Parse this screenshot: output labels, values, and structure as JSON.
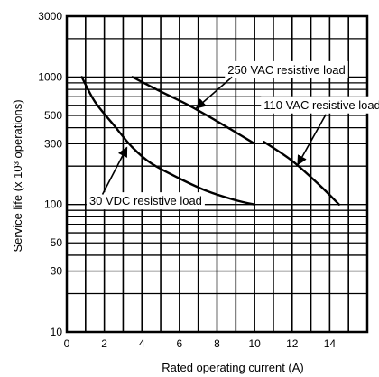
{
  "chart_data": {
    "type": "line",
    "xlabel": "Rated operating current (A)",
    "ylabel": "Service life (x 10³ operations)",
    "xlim": [
      0,
      16
    ],
    "ylim": [
      10,
      3000
    ],
    "y_scale": "log",
    "grid": true,
    "x_ticks": [
      "0",
      "2",
      "4",
      "6",
      "8",
      "10",
      "12",
      "14"
    ],
    "x_tick_values": [
      0,
      2,
      4,
      6,
      8,
      10,
      12,
      14
    ],
    "y_ticks": [
      "10",
      "30",
      "50",
      "100",
      "300",
      "500",
      "1000",
      "3000"
    ],
    "y_tick_values": [
      10,
      30,
      50,
      100,
      300,
      500,
      1000,
      3000
    ],
    "series": [
      {
        "name": "30 VDC resistive load",
        "x": [
          0.8,
          1.5,
          2.5,
          3.5,
          4.5,
          6,
          7.5,
          9,
          10
        ],
        "y": [
          1000,
          640,
          420,
          280,
          210,
          160,
          127,
          108,
          100
        ]
      },
      {
        "name": "250 VAC resistive load",
        "x": [
          3.5,
          5,
          6.5,
          8,
          10
        ],
        "y": [
          1000,
          770,
          600,
          450,
          300
        ]
      },
      {
        "name": "110 VAC resistive load",
        "x": [
          10.5,
          12,
          13.5,
          14.5
        ],
        "y": [
          310,
          220,
          140,
          100
        ]
      }
    ]
  }
}
